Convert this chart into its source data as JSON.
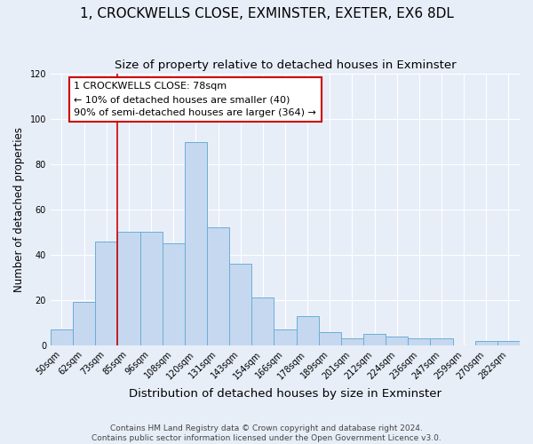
{
  "title": "1, CROCKWELLS CLOSE, EXMINSTER, EXETER, EX6 8DL",
  "subtitle": "Size of property relative to detached houses in Exminster",
  "xlabel": "Distribution of detached houses by size in Exminster",
  "ylabel": "Number of detached properties",
  "categories": [
    "50sqm",
    "62sqm",
    "73sqm",
    "85sqm",
    "96sqm",
    "108sqm",
    "120sqm",
    "131sqm",
    "143sqm",
    "154sqm",
    "166sqm",
    "178sqm",
    "189sqm",
    "201sqm",
    "212sqm",
    "224sqm",
    "236sqm",
    "247sqm",
    "259sqm",
    "270sqm",
    "282sqm"
  ],
  "values": [
    7,
    19,
    46,
    50,
    50,
    45,
    90,
    52,
    36,
    21,
    7,
    13,
    6,
    3,
    5,
    4,
    3,
    3,
    0,
    2,
    2
  ],
  "bar_color": "#c5d8f0",
  "bar_edge_color": "#6baed6",
  "vline_x_index": 2,
  "vline_color": "#cc0000",
  "annotation_text": "1 CROCKWELLS CLOSE: 78sqm\n← 10% of detached houses are smaller (40)\n90% of semi-detached houses are larger (364) →",
  "annotation_box_color": "#ffffff",
  "annotation_box_edge_color": "#cc0000",
  "ylim": [
    0,
    120
  ],
  "yticks": [
    0,
    20,
    40,
    60,
    80,
    100,
    120
  ],
  "footer_text": "Contains HM Land Registry data © Crown copyright and database right 2024.\nContains public sector information licensed under the Open Government Licence v3.0.",
  "bg_color": "#e8eef8",
  "grid_color": "#ffffff",
  "title_fontsize": 11,
  "subtitle_fontsize": 9.5,
  "xlabel_fontsize": 9.5,
  "ylabel_fontsize": 8.5,
  "tick_fontsize": 7,
  "annotation_fontsize": 8,
  "footer_fontsize": 6.5
}
